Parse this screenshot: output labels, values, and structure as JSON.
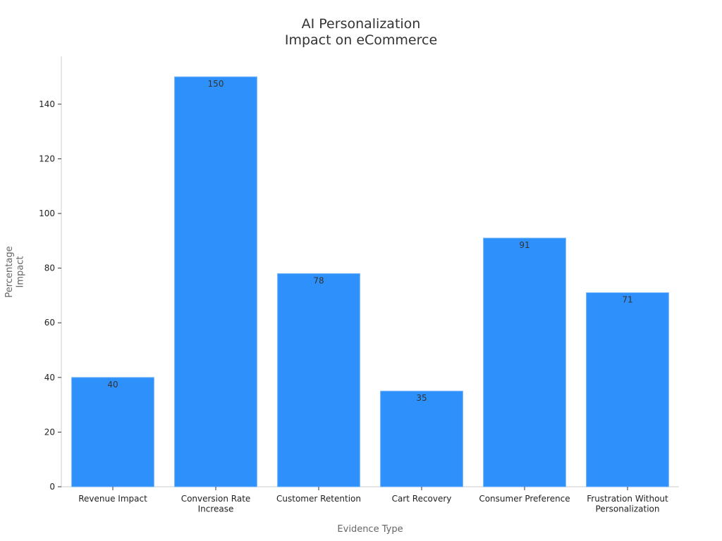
{
  "chart_data": {
    "type": "bar",
    "title": "AI Personalization\nImpact on eCommerce",
    "x_label": "Evidence Type",
    "y_label": "Percentage\nImpact",
    "categories": [
      "Revenue Impact",
      "Conversion Rate\nIncrease",
      "Customer Retention",
      "Cart Recovery",
      "Consumer Preference",
      "Frustration Without\nPersonalization"
    ],
    "values": [
      40,
      150,
      78,
      35,
      91,
      71
    ],
    "color": "#2e90fa",
    "ylim": [
      0,
      157.5
    ],
    "yticks": [
      0,
      20,
      40,
      60,
      80,
      100,
      120,
      140
    ],
    "grid": false
  }
}
